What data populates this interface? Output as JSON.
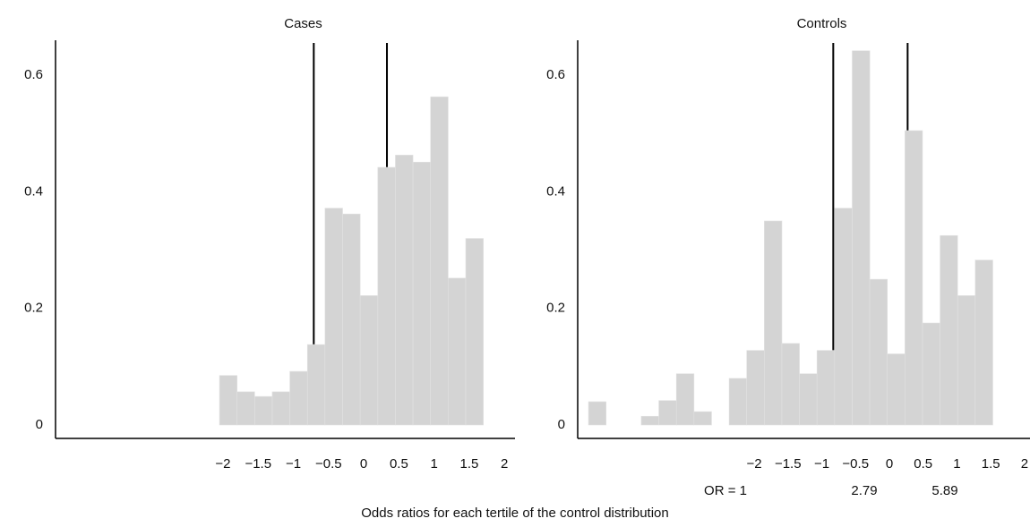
{
  "chart_data": [
    {
      "type": "histogram",
      "title": "Cases",
      "bins": [
        -2.05,
        -1.8,
        -1.55,
        -1.3,
        -1.05,
        -0.8,
        -0.55,
        -0.3,
        -0.05,
        0.2,
        0.45,
        0.7,
        0.95,
        1.2,
        1.45,
        1.7
      ],
      "values": [
        0.085,
        0.057,
        0.049,
        0.057,
        0.092,
        0.138,
        0.372,
        0.362,
        0.222,
        0.442,
        0.463,
        0.451,
        0.563,
        0.252,
        0.32
      ],
      "color": "#d4d4d4",
      "line_color": "#000000",
      "vlines": [
        -0.71,
        0.33
      ],
      "xlim": [
        -4.38,
        2.15
      ],
      "ylim": [
        -0.023,
        0.66
      ],
      "xticks": [
        {
          "value": -2,
          "label": "−2"
        },
        {
          "value": -1.5,
          "label": "−1.5"
        },
        {
          "value": -1,
          "label": "−1"
        },
        {
          "value": -0.5,
          "label": "−0.5"
        },
        0,
        0.5,
        1,
        1.5,
        2
      ],
      "yticks": [
        0,
        0.2,
        0.4,
        0.6
      ]
    },
    {
      "type": "histogram",
      "title": "Controls",
      "bins": [
        -4.45,
        -4.19,
        -3.93,
        -3.67,
        -3.41,
        -3.15,
        -2.89,
        -2.63,
        -2.37,
        -2.11,
        -1.85,
        -1.59,
        -1.33,
        -1.07,
        -0.81,
        -0.55,
        -0.29,
        -0.03,
        0.23,
        0.49,
        0.75,
        1.01,
        1.27,
        1.53
      ],
      "values": [
        0.04,
        0,
        0,
        0.015,
        0.042,
        0.088,
        0.023,
        0,
        0.08,
        0.128,
        0.35,
        0.14,
        0.088,
        0.128,
        0.372,
        0.642,
        0.25,
        0.122,
        0.505,
        0.175,
        0.325,
        0.222,
        0.283
      ],
      "color": "#d4d4d4",
      "line_color": "#000000",
      "vlines": [
        -0.83,
        0.27
      ],
      "xlim": [
        -4.61,
        2.08
      ],
      "ylim": [
        -0.023,
        0.66
      ],
      "xticks": [
        {
          "value": -2,
          "label": "−2"
        },
        {
          "value": -1.5,
          "label": "−1.5"
        },
        {
          "value": -1,
          "label": "−1"
        },
        {
          "value": -0.5,
          "label": "−0.5"
        },
        0,
        0.5,
        1,
        1.5,
        2
      ],
      "yticks": [
        0,
        0.2,
        0.4,
        0.6
      ],
      "annotations": [
        "OR = 1",
        "2.79",
        "5.89"
      ]
    }
  ],
  "caption": "Odds ratios for each tertile of the control distribution"
}
